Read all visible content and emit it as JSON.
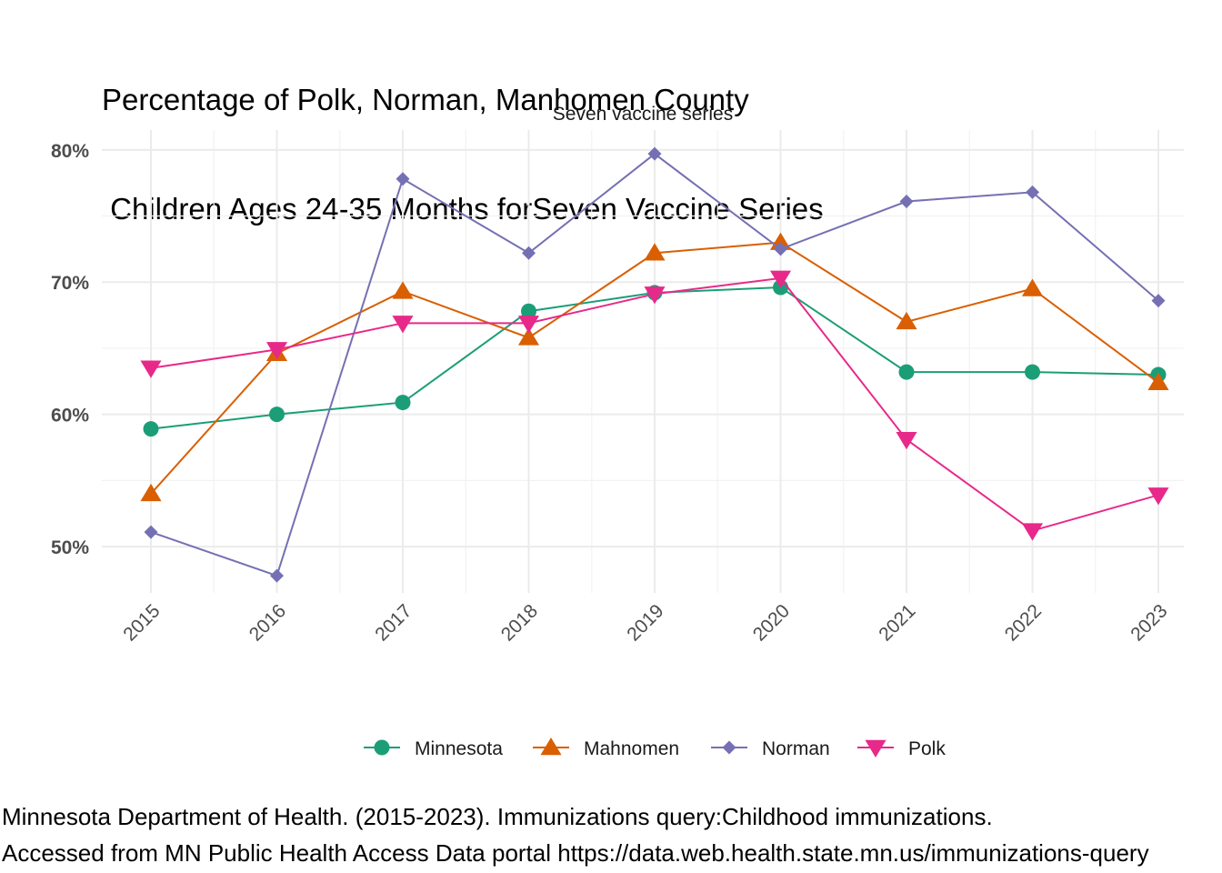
{
  "title_line1": "Percentage of Polk, Norman, Manhomen County",
  "title_line2": " Children Ages 24-35 Months forSeven Vaccine Series",
  "caption_line1": "Minnesota Department of Health. (2015-2023). Immunizations query:Childhood immunizations.",
  "caption_line2": "Accessed from MN Public Health Access Data portal https://data.web.health.state.mn.us/immunizations-query",
  "chart_data": {
    "type": "line",
    "facet_label": "Seven vaccine series",
    "x": [
      "2015",
      "2016",
      "2017",
      "2018",
      "2019",
      "2020",
      "2021",
      "2022",
      "2023"
    ],
    "y_ticks": [
      50,
      60,
      70,
      80
    ],
    "y_tick_labels": [
      "50%",
      "60%",
      "70%",
      "80%"
    ],
    "ylim": [
      46.5,
      81.5
    ],
    "grid": true,
    "legend_position": "bottom",
    "series": [
      {
        "name": "Minnesota",
        "color": "#1B9E77",
        "marker": "circle",
        "values": [
          58.9,
          60.0,
          60.9,
          67.8,
          69.2,
          69.6,
          63.2,
          63.2,
          63.0
        ]
      },
      {
        "name": "Mahnomen",
        "color": "#D95F02",
        "marker": "triangle-up",
        "values": [
          54.0,
          64.6,
          69.3,
          65.8,
          72.2,
          73.0,
          67.0,
          69.5,
          62.4
        ]
      },
      {
        "name": "Norman",
        "color": "#7570B3",
        "marker": "diamond",
        "values": [
          51.1,
          47.8,
          77.8,
          72.2,
          79.7,
          72.5,
          76.1,
          76.8,
          68.6
        ]
      },
      {
        "name": "Polk",
        "color": "#E7298A",
        "marker": "triangle-down",
        "values": [
          63.5,
          64.9,
          66.9,
          66.9,
          69.1,
          70.3,
          58.1,
          51.2,
          53.9
        ]
      }
    ]
  }
}
